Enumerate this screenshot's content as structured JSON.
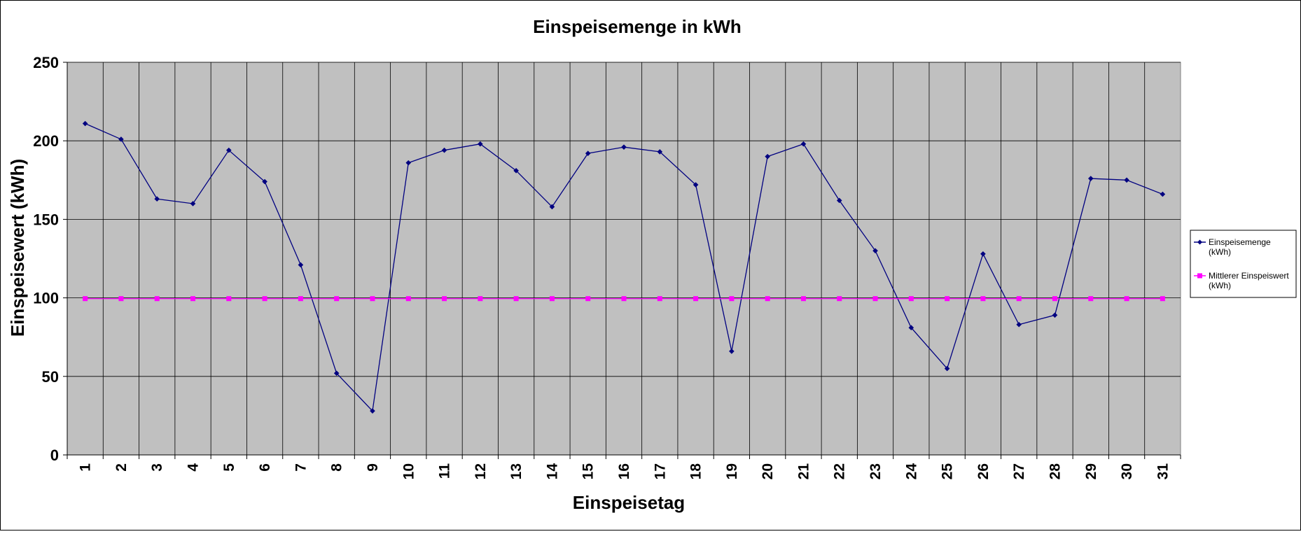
{
  "chart_data": {
    "type": "line",
    "title": "Einspeisemenge in kWh",
    "xlabel": "Einspeisetag",
    "ylabel": "Einspeisewert  (kWh)",
    "ylim": [
      0,
      250
    ],
    "yticks": [
      "0",
      "50",
      "100",
      "150",
      "200",
      "250"
    ],
    "categories": [
      "1",
      "2",
      "3",
      "4",
      "5",
      "6",
      "7",
      "8",
      "9",
      "10",
      "11",
      "12",
      "13",
      "14",
      "15",
      "16",
      "17",
      "18",
      "19",
      "20",
      "21",
      "22",
      "23",
      "24",
      "25",
      "26",
      "27",
      "28",
      "29",
      "30",
      "31"
    ],
    "grid": true,
    "legend_position": "right",
    "plot_background": "#c0c0c0",
    "series": [
      {
        "name": "Einspeisemenge (kWh)",
        "legend_lines": [
          "Einspeisemenge",
          "(kWh)"
        ],
        "color": "#000080",
        "marker": "diamond",
        "values": [
          211,
          201,
          163,
          160,
          194,
          174,
          121,
          52,
          28,
          186,
          194,
          198,
          181,
          158,
          192,
          196,
          193,
          172,
          66,
          190,
          198,
          162,
          130,
          81,
          55,
          128,
          83,
          89,
          176,
          175,
          166
        ]
      },
      {
        "name": "Mittlerer Einspeiswert (kWh)",
        "legend_lines": [
          "Mittlerer Einspeiswert",
          "(kWh)"
        ],
        "color": "#ff00ff",
        "marker": "square",
        "values": [
          99.5,
          99.5,
          99.5,
          99.5,
          99.5,
          99.5,
          99.5,
          99.5,
          99.5,
          99.5,
          99.5,
          99.5,
          99.5,
          99.5,
          99.5,
          99.5,
          99.5,
          99.5,
          99.5,
          99.5,
          99.5,
          99.5,
          99.5,
          99.5,
          99.5,
          99.5,
          99.5,
          99.5,
          99.5,
          99.5,
          99.5
        ]
      }
    ]
  }
}
